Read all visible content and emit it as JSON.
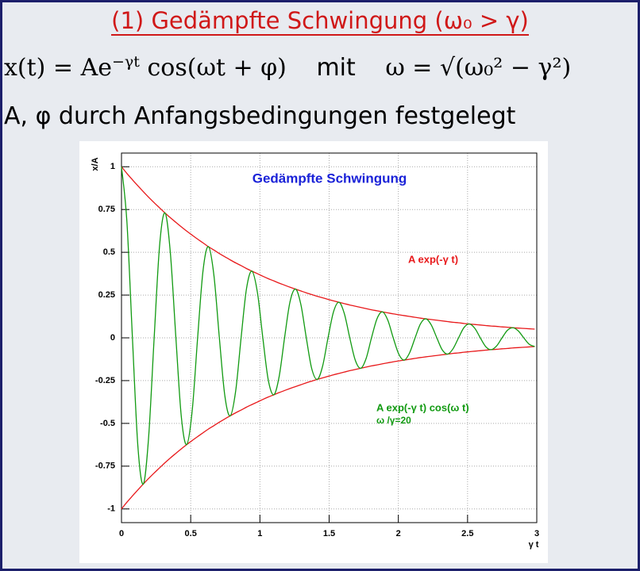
{
  "slide": {
    "title": "(1) Gedämpfte Schwingung (ω₀ > γ)",
    "equation": {
      "lhs": "x(t) = Ae",
      "exponent": "−γt",
      "rhs": "cos(ωt + φ)",
      "mit": "mit",
      "omega": "ω = √(ω₀² − γ²)"
    },
    "note": "A, φ durch Anfangsbedingungen festgelegt"
  },
  "chart_data": {
    "type": "line",
    "title": "Gedämpfte Schwingung",
    "x_label": "γ t",
    "y_label": "x/A",
    "annotation": "ω /γ=20",
    "xlim": [
      0,
      3
    ],
    "ylim": [
      -1.08,
      1.08
    ],
    "xticks": [
      0,
      0.5,
      1,
      1.5,
      2,
      2.5,
      3
    ],
    "yticks": [
      -1,
      -0.75,
      -0.5,
      -0.25,
      0,
      0.25,
      0.5,
      0.75,
      1
    ],
    "grid": true,
    "x": [
      0,
      0.039,
      0.079,
      0.118,
      0.157,
      0.196,
      0.236,
      0.275,
      0.314,
      0.353,
      0.393,
      0.432,
      0.471,
      0.511,
      0.55,
      0.589,
      0.628,
      0.668,
      0.707,
      0.746,
      0.785,
      0.825,
      0.864,
      0.903,
      0.942,
      0.982,
      1.021,
      1.06,
      1.1,
      1.139,
      1.178,
      1.217,
      1.257,
      1.296,
      1.335,
      1.374,
      1.414,
      1.453,
      1.492,
      1.532,
      1.571,
      1.61,
      1.649,
      1.689,
      1.728,
      1.767,
      1.806,
      1.846,
      1.885,
      1.924,
      1.963,
      2.003,
      2.042,
      2.081,
      2.121,
      2.16,
      2.199,
      2.238,
      2.278,
      2.317,
      2.356,
      2.395,
      2.435,
      2.474,
      2.513,
      2.553,
      2.592,
      2.631,
      2.67,
      2.71,
      2.749,
      2.788,
      2.827,
      2.867,
      2.906,
      2.945,
      2.985
    ],
    "series": [
      {
        "name": "A exp(-γ t)",
        "color": "#e8191b",
        "values": [
          1,
          0.961,
          0.924,
          0.889,
          0.855,
          0.822,
          0.79,
          0.76,
          0.73,
          0.702,
          0.675,
          0.649,
          0.624,
          0.6,
          0.577,
          0.555,
          0.533,
          0.513,
          0.493,
          0.474,
          0.456,
          0.438,
          0.422,
          0.405,
          0.39,
          0.375,
          0.36,
          0.346,
          0.333,
          0.32,
          0.308,
          0.296,
          0.285,
          0.274,
          0.263,
          0.253,
          0.243,
          0.234,
          0.225,
          0.216,
          0.208,
          0.2,
          0.192,
          0.185,
          0.178,
          0.171,
          0.164,
          0.158,
          0.152,
          0.146,
          0.14,
          0.135,
          0.13,
          0.125,
          0.12,
          0.115,
          0.111,
          0.107,
          0.103,
          0.099,
          0.095,
          0.091,
          0.088,
          0.084,
          0.081,
          0.078,
          0.075,
          0.072,
          0.069,
          0.067,
          0.064,
          0.062,
          0.059,
          0.057,
          0.055,
          0.053,
          0.051
        ]
      },
      {
        "color": "#e8191b",
        "values": [
          -1,
          -0.961,
          -0.924,
          -0.889,
          -0.855,
          -0.822,
          -0.79,
          -0.76,
          -0.73,
          -0.702,
          -0.675,
          -0.649,
          -0.624,
          -0.6,
          -0.577,
          -0.555,
          -0.533,
          -0.513,
          -0.493,
          -0.474,
          -0.456,
          -0.438,
          -0.422,
          -0.405,
          -0.39,
          -0.375,
          -0.36,
          -0.346,
          -0.333,
          -0.32,
          -0.308,
          -0.296,
          -0.285,
          -0.274,
          -0.263,
          -0.253,
          -0.243,
          -0.234,
          -0.225,
          -0.216,
          -0.208,
          -0.2,
          -0.192,
          -0.185,
          -0.178,
          -0.171,
          -0.164,
          -0.158,
          -0.152,
          -0.146,
          -0.14,
          -0.135,
          -0.13,
          -0.125,
          -0.12,
          -0.115,
          -0.111,
          -0.107,
          -0.103,
          -0.099,
          -0.095,
          -0.091,
          -0.088,
          -0.084,
          -0.081,
          -0.078,
          -0.075,
          -0.072,
          -0.069,
          -0.067,
          -0.064,
          -0.062,
          -0.059,
          -0.057,
          -0.055,
          -0.053,
          -0.051
        ]
      },
      {
        "name": "A exp(-γ t) cos(ω t)",
        "color": "#119a11",
        "values": [
          1,
          0.68,
          0,
          -0.629,
          -0.855,
          -0.581,
          0,
          0.537,
          0.73,
          0.497,
          0,
          -0.459,
          -0.624,
          -0.424,
          0,
          0.392,
          0.533,
          0.363,
          0,
          -0.335,
          -0.456,
          -0.31,
          0,
          0.287,
          0.39,
          0.265,
          0,
          -0.245,
          -0.333,
          -0.226,
          0,
          0.209,
          0.285,
          0.194,
          0,
          -0.179,
          -0.243,
          -0.165,
          0,
          0.153,
          0.208,
          0.141,
          0,
          -0.131,
          -0.178,
          -0.121,
          0,
          0.112,
          0.152,
          0.103,
          0,
          -0.095,
          -0.13,
          -0.088,
          0,
          0.082,
          0.111,
          0.075,
          0,
          -0.07,
          -0.095,
          -0.064,
          0,
          0.06,
          0.081,
          0.055,
          0,
          -0.051,
          -0.069,
          -0.047,
          0,
          0.044,
          0.059,
          0.04,
          0,
          -0.037,
          -0.051
        ]
      }
    ]
  }
}
